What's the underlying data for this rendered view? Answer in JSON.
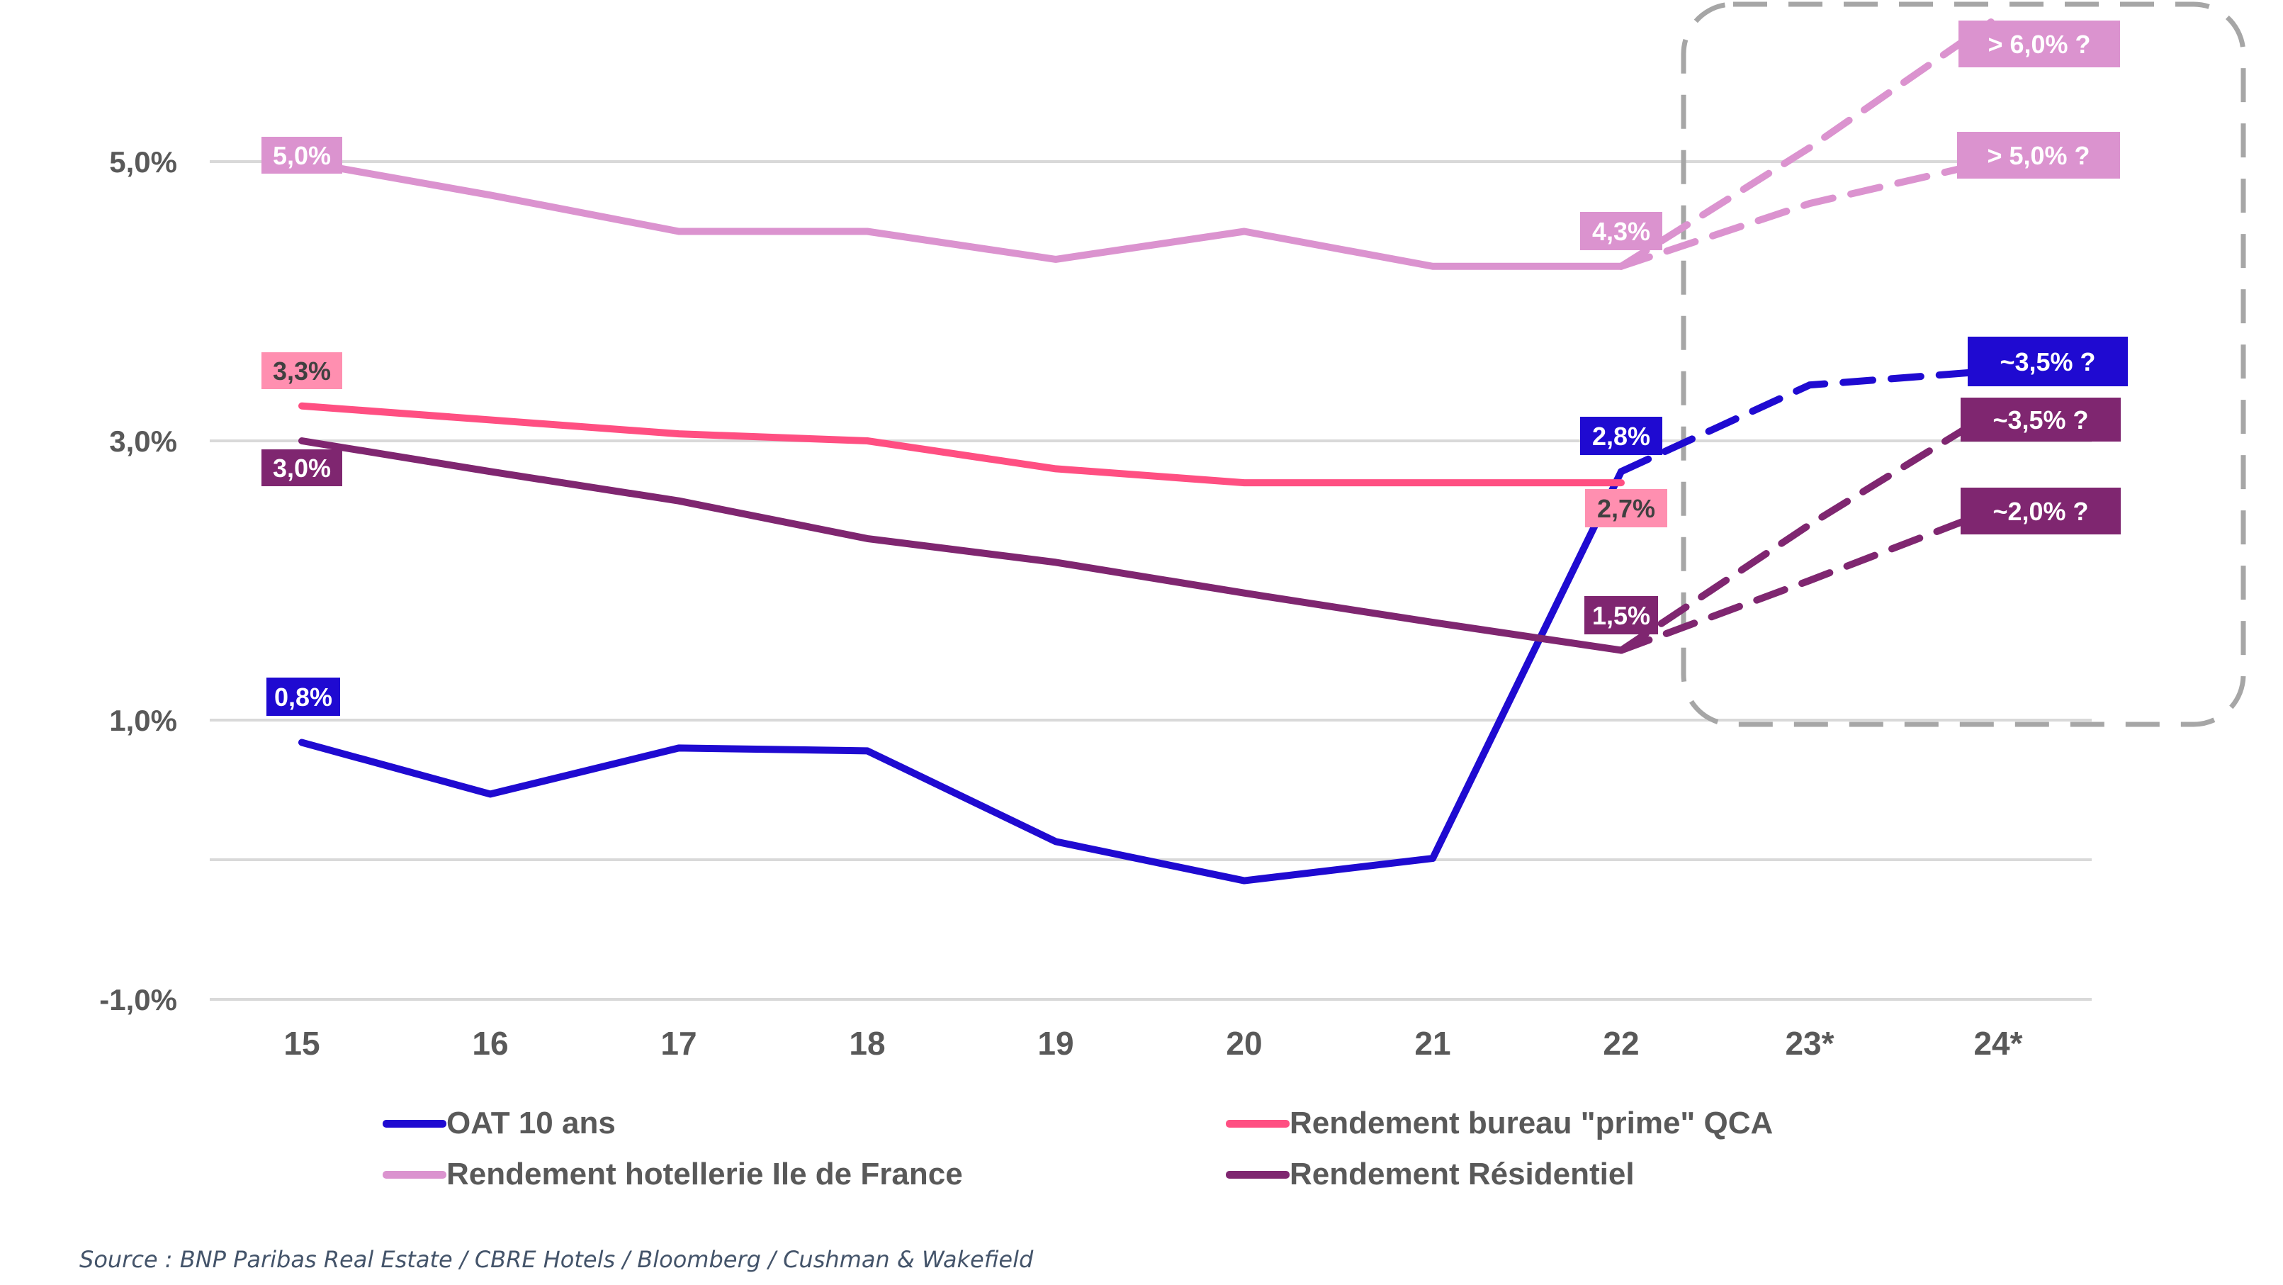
{
  "chart_data": {
    "type": "line",
    "title": "",
    "xlabel": "",
    "ylabel": "",
    "categories": [
      "15",
      "16",
      "17",
      "18",
      "19",
      "20",
      "21",
      "22",
      "23*",
      "24*"
    ],
    "ylim": [
      -1.0,
      6.0
    ],
    "yticks": [
      {
        "value": 5.0,
        "label": "5,0%"
      },
      {
        "value": 3.0,
        "label": "3,0%"
      },
      {
        "value": 1.0,
        "label": "1,0%"
      },
      {
        "value": -1.0,
        "label": "-1,0%"
      }
    ],
    "gridlines": [
      5.0,
      3.0,
      1.0,
      0.0,
      -1.0
    ],
    "grid": true,
    "legend_position": "bottom",
    "series": [
      {
        "name": "OAT 10 ans",
        "color": "#1f0ad1",
        "label_bg": "#1f0ad1",
        "label_color": "#ffffff",
        "values": [
          0.84,
          0.47,
          0.8,
          0.78,
          0.13,
          -0.15,
          0.01,
          2.78
        ],
        "start_label": "0,8%",
        "end_label": "2,8%",
        "projections": [
          {
            "values": [
              2.78,
              3.4,
              3.5
            ],
            "label": "~3,5% ?"
          }
        ]
      },
      {
        "name": "Rendement bureau \"prime\" QCA",
        "color": "#ff4f82",
        "label_bg": "#ff8fb0",
        "label_color": "#404040",
        "values": [
          3.25,
          3.15,
          3.05,
          3.0,
          2.8,
          2.7,
          2.7,
          2.7
        ],
        "start_label": "3,3%",
        "end_label": "2,7%",
        "projections": []
      },
      {
        "name": "Rendement hotellerie Ile de France",
        "color": "#db93cf",
        "label_bg": "#db93cf",
        "label_color": "#ffffff",
        "values": [
          5.0,
          4.76,
          4.5,
          4.5,
          4.3,
          4.5,
          4.25,
          4.25
        ],
        "start_label": "5,0%",
        "end_label": "4,3%",
        "projections": [
          {
            "values": [
              4.25,
              5.1,
              6.0
            ],
            "label": "> 6,0% ?"
          },
          {
            "values": [
              4.25,
              4.7,
              5.0
            ],
            "label": "> 5,0% ?"
          }
        ]
      },
      {
        "name": "Rendement Résidentiel",
        "color": "#7f2670",
        "label_bg": "#7f2670",
        "label_color": "#ffffff",
        "values": [
          3.0,
          2.78,
          2.57,
          2.3,
          2.13,
          1.91,
          1.7,
          1.5
        ],
        "start_label": "3,0%",
        "end_label": "1,5%",
        "projections": [
          {
            "values": [
              1.5,
              2.4,
              3.2
            ],
            "label": "~3,5% ?"
          },
          {
            "values": [
              1.5,
              2.0,
              2.5
            ],
            "label": "~2,0% ?"
          }
        ]
      }
    ],
    "forecast_box": {
      "from_category": "23*",
      "to_category": "24*",
      "style": "dashed-rounded",
      "color": "#a6a6a6"
    }
  },
  "legend": [
    {
      "label": "OAT 10 ans",
      "color": "#1f0ad1"
    },
    {
      "label": "Rendement bureau \"prime\" QCA",
      "color": "#ff4f82"
    },
    {
      "label": "Rendement hotellerie Ile de France",
      "color": "#db93cf"
    },
    {
      "label": "Rendement Résidentiel",
      "color": "#7f2670"
    }
  ],
  "source": "Source : BNP Paribas Real Estate / CBRE Hotels / Bloomberg / Cushman & Wakefield"
}
